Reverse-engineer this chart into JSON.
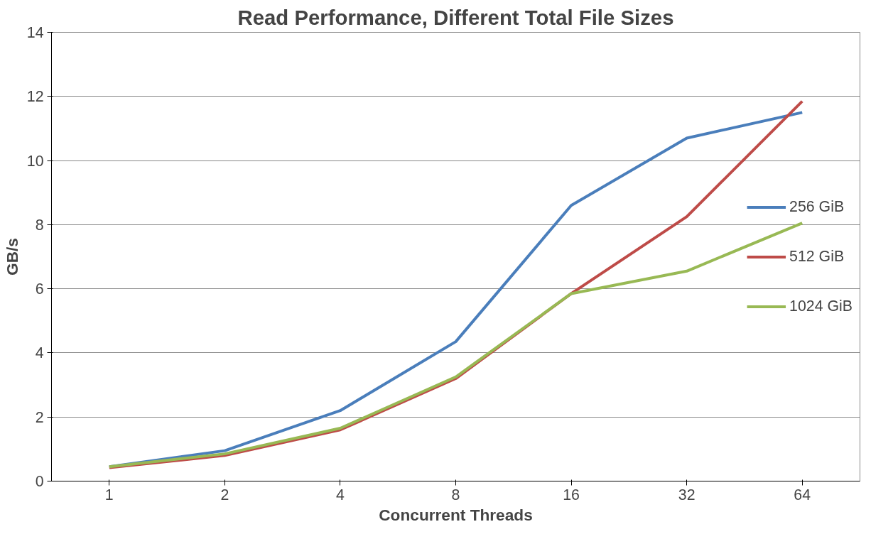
{
  "chart_data": {
    "type": "line",
    "title": "Read Performance, Different Total File Sizes",
    "xlabel": "Concurrent Threads",
    "ylabel": "GB/s",
    "categories": [
      "1",
      "2",
      "4",
      "8",
      "16",
      "32",
      "64"
    ],
    "series": [
      {
        "name": "256 GiB",
        "color": "#4a7ebb",
        "values": [
          0.45,
          0.95,
          2.2,
          4.35,
          8.6,
          10.7,
          11.5
        ]
      },
      {
        "name": "512 GiB",
        "color": "#be4b48",
        "values": [
          0.42,
          0.8,
          1.6,
          3.2,
          5.85,
          8.25,
          11.85
        ]
      },
      {
        "name": "1024 GiB",
        "color": "#98b954",
        "values": [
          0.45,
          0.85,
          1.65,
          3.25,
          5.85,
          6.55,
          8.05
        ]
      }
    ],
    "ylim": [
      0,
      14
    ],
    "yticks": [
      0,
      2,
      4,
      6,
      8,
      10,
      12,
      14
    ],
    "grid": "y",
    "legend": "right",
    "marker": "none",
    "line_style": "solid"
  }
}
